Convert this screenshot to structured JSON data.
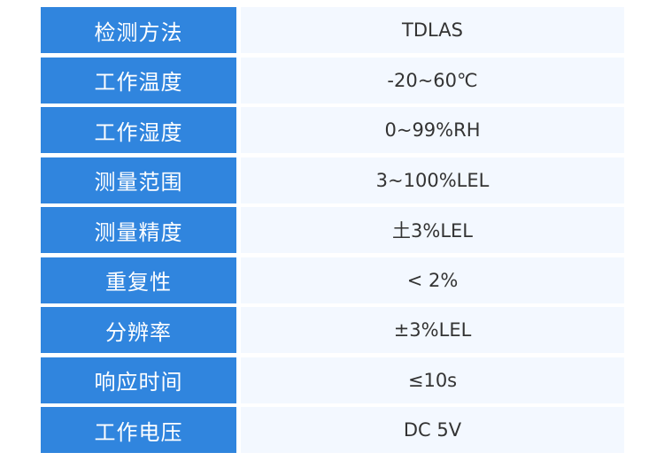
{
  "colors": {
    "label_bg": "#3085de",
    "value_bg": "#f3f8ff",
    "label_text": "#ffffff",
    "value_text": "#333333"
  },
  "rows": [
    {
      "label": "检测方法",
      "value": "TDLAS"
    },
    {
      "label": "工作温度",
      "value": "-20~60℃"
    },
    {
      "label": "工作湿度",
      "value": "0~99%RH"
    },
    {
      "label": "测量范围",
      "value": "3~100%LEL"
    },
    {
      "label": "测量精度",
      "value": "土3%LEL"
    },
    {
      "label": "重复性",
      "value": "< 2%"
    },
    {
      "label": "分辨率",
      "value": "±3%LEL"
    },
    {
      "label": "响应时间",
      "value": "≤10s"
    },
    {
      "label": "工作电压",
      "value": "DC 5V"
    }
  ]
}
